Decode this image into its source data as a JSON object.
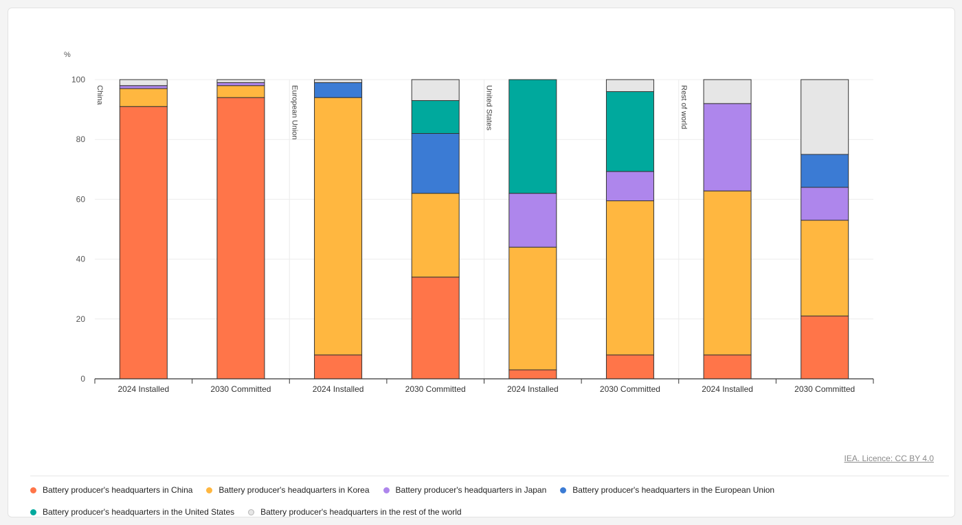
{
  "chart_data": {
    "type": "bar",
    "stacked": true,
    "ylabel": "%",
    "ylim": [
      0,
      100
    ],
    "yticks": [
      0,
      20,
      40,
      60,
      80,
      100
    ],
    "groups": [
      "China",
      "European Union",
      "United States",
      "Rest of world"
    ],
    "categories": [
      "2024 Installed",
      "2030 Committed",
      "2024 Installed",
      "2030 Committed",
      "2024 Installed",
      "2030 Committed",
      "2024 Installed",
      "2030 Committed"
    ],
    "series": [
      {
        "name": "Battery producer's headquarters in China",
        "color": "#ff7549",
        "values": [
          91,
          94,
          8,
          34,
          3,
          8,
          8,
          21
        ]
      },
      {
        "name": "Battery producer's headquarters in Korea",
        "color": "#ffb740",
        "values": [
          6,
          4,
          86,
          28,
          41,
          51.5,
          54.8,
          32
        ]
      },
      {
        "name": "Battery producer's headquarters in Japan",
        "color": "#ae86ec",
        "values": [
          1,
          1,
          0,
          0,
          18,
          9.8,
          29.2,
          11
        ]
      },
      {
        "name": "Battery producer's headquarters in the European Union",
        "color": "#3b7bd4",
        "values": [
          0,
          0,
          5,
          20,
          0,
          0,
          0,
          11
        ]
      },
      {
        "name": "Battery producer's headquarters in the United States",
        "color": "#00a99d",
        "values": [
          0,
          0,
          0,
          11,
          38,
          26.7,
          0,
          0
        ]
      },
      {
        "name": "Battery producer's headquarters in the rest of the world",
        "color": "#e6e6e6",
        "values": [
          2,
          1,
          1,
          7,
          0,
          4,
          8,
          25
        ]
      }
    ],
    "legend_position": "bottom",
    "grid": true
  },
  "licence_text": "IEA. Licence: CC BY 4.0"
}
